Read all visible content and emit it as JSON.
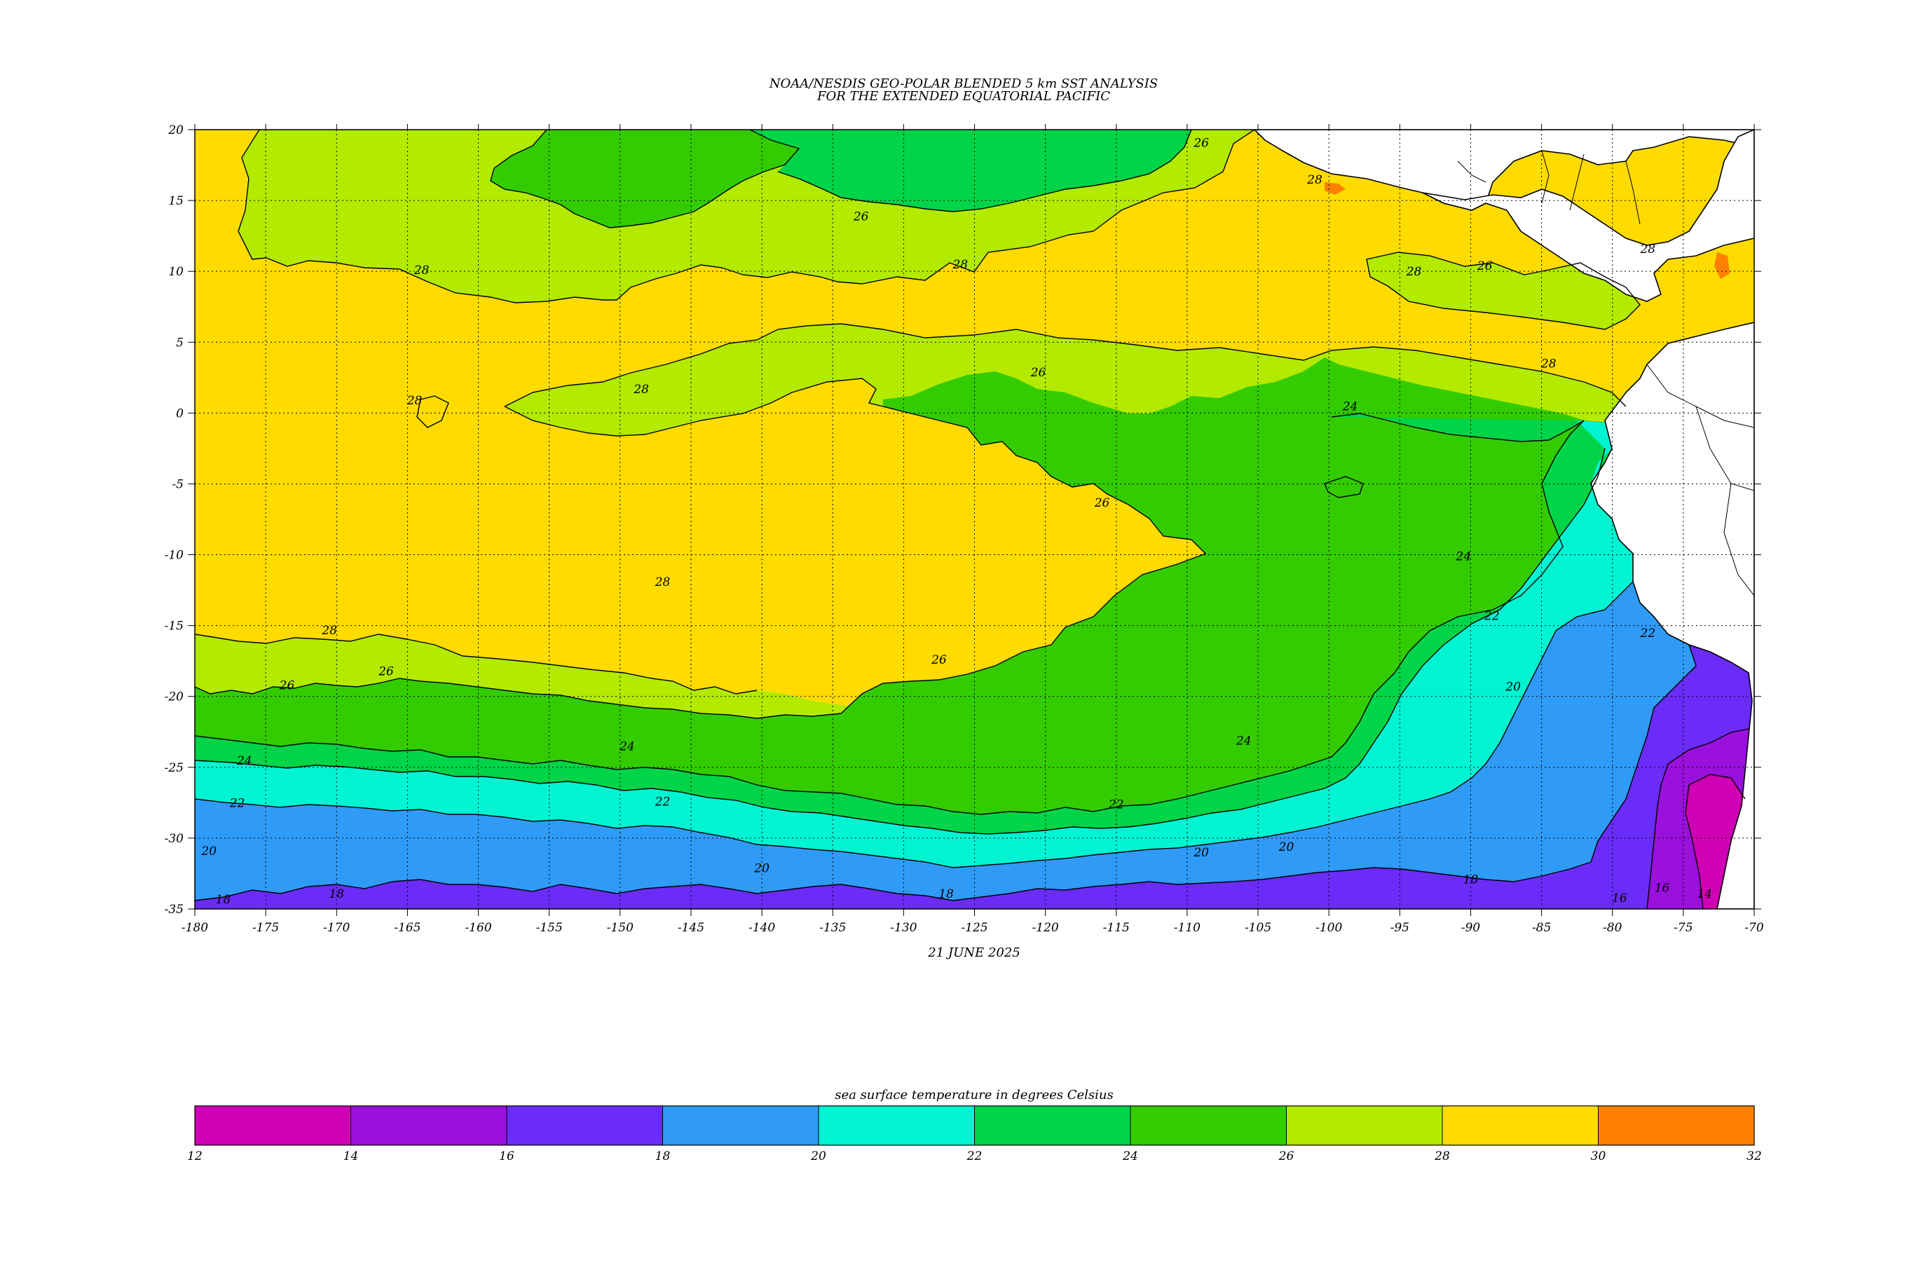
{
  "title_line1": "NOAA/NESDIS GEO-POLAR BLENDED 5 km SST ANALYSIS",
  "title_line2": "FOR THE EXTENDED EQUATORIAL PACIFIC",
  "date_label": "21 JUNE 2025",
  "colorbar_title": "sea surface temperature in degrees Celsius",
  "map": {
    "lon_range": [
      -180,
      -70
    ],
    "lat_range": [
      -35,
      20
    ],
    "lon_ticks": [
      -180,
      -175,
      -170,
      -165,
      -160,
      -155,
      -150,
      -145,
      -140,
      -135,
      -130,
      -125,
      -120,
      -115,
      -110,
      -105,
      -100,
      -95,
      -90,
      -85,
      -80,
      -75,
      -70
    ],
    "lat_ticks": [
      20,
      15,
      10,
      5,
      0,
      -5,
      -10,
      -15,
      -20,
      -25,
      -30,
      -35
    ],
    "grid": true
  },
  "colorbar": {
    "boundaries": [
      12,
      14,
      16,
      18,
      20,
      22,
      24,
      26,
      28,
      30,
      32
    ],
    "colors": [
      "#d000b4",
      "#9a10dc",
      "#6a2cf6",
      "#2f9bf6",
      "#00f4d2",
      "#00d448",
      "#33cc00",
      "#b2ea00",
      "#ffdb00",
      "#ff8000"
    ]
  },
  "contour_labels": [
    {
      "text": "26",
      "lon": -133,
      "lat": 13.6
    },
    {
      "text": "26",
      "lon": -109,
      "lat": 18.8
    },
    {
      "text": "28",
      "lon": -101,
      "lat": 16.2
    },
    {
      "text": "28",
      "lon": -164,
      "lat": 9.8
    },
    {
      "text": "28",
      "lon": -126,
      "lat": 10.2
    },
    {
      "text": "28",
      "lon": -94,
      "lat": 9.7
    },
    {
      "text": "26",
      "lon": -89,
      "lat": 10.1
    },
    {
      "text": "28",
      "lon": -77.5,
      "lat": 11.3
    },
    {
      "text": "28",
      "lon": -84.5,
      "lat": 3.2
    },
    {
      "text": "28",
      "lon": -164.5,
      "lat": 0.6
    },
    {
      "text": "28",
      "lon": -148.5,
      "lat": 1.4
    },
    {
      "text": "26",
      "lon": -120.5,
      "lat": 2.6
    },
    {
      "text": "24",
      "lon": -98.5,
      "lat": 0.2
    },
    {
      "text": "26",
      "lon": -116,
      "lat": -6.6
    },
    {
      "text": "24",
      "lon": -90.5,
      "lat": -10.4
    },
    {
      "text": "28",
      "lon": -147,
      "lat": -12.2
    },
    {
      "text": "28",
      "lon": -170.5,
      "lat": -15.6
    },
    {
      "text": "22",
      "lon": -88.5,
      "lat": -14.6
    },
    {
      "text": "26",
      "lon": -173.5,
      "lat": -19.5
    },
    {
      "text": "26",
      "lon": -166.5,
      "lat": -18.5
    },
    {
      "text": "26",
      "lon": -127.5,
      "lat": -17.7
    },
    {
      "text": "22",
      "lon": -77.5,
      "lat": -15.8
    },
    {
      "text": "20",
      "lon": -87,
      "lat": -19.6
    },
    {
      "text": "24",
      "lon": -176.5,
      "lat": -24.8
    },
    {
      "text": "24",
      "lon": -106,
      "lat": -23.4
    },
    {
      "text": "24",
      "lon": -149.5,
      "lat": -23.8
    },
    {
      "text": "22",
      "lon": -177,
      "lat": -27.8
    },
    {
      "text": "22",
      "lon": -147,
      "lat": -27.7
    },
    {
      "text": "22",
      "lon": -115,
      "lat": -27.9
    },
    {
      "text": "20",
      "lon": -179,
      "lat": -31.2
    },
    {
      "text": "20",
      "lon": -140,
      "lat": -32.4
    },
    {
      "text": "20",
      "lon": -109,
      "lat": -31.3
    },
    {
      "text": "18",
      "lon": -178,
      "lat": -34.6
    },
    {
      "text": "18",
      "lon": -170,
      "lat": -34.2
    },
    {
      "text": "18",
      "lon": -127,
      "lat": -34.2
    },
    {
      "text": "18",
      "lon": -90,
      "lat": -33.2
    },
    {
      "text": "16",
      "lon": -79.5,
      "lat": -34.5
    },
    {
      "text": "16",
      "lon": -76.5,
      "lat": -33.8
    },
    {
      "text": "14",
      "lon": -73.5,
      "lat": -34.2
    },
    {
      "text": "20",
      "lon": -103,
      "lat": -30.9
    }
  ]
}
